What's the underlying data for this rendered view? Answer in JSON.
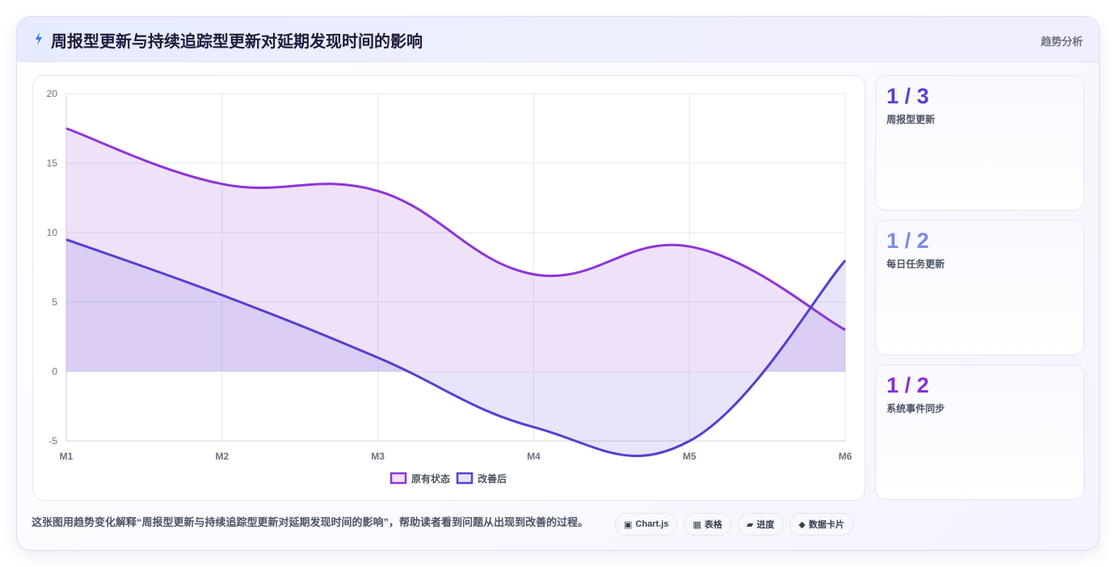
{
  "header": {
    "title": "周报型更新与持续追踪型更新对延期发现时间的影响",
    "tag": "趋势分析"
  },
  "stats": [
    {
      "value": "1 / 3",
      "label": "周报型更新",
      "color": "#5b3fd0"
    },
    {
      "value": "1 / 2",
      "label": "每日任务更新",
      "color": "#7c8ae6"
    },
    {
      "value": "1 / 2",
      "label": "系统事件同步",
      "color": "#8a2fd6"
    }
  ],
  "caption": "这张图用趋势变化解释“周报型更新与持续追踪型更新对延期发现时间的影响”，帮助读者看到问题从出现到改善的过程。",
  "chips": [
    {
      "icon": "▣",
      "icon_name": "chart-icon",
      "label": "Chart.js"
    },
    {
      "icon": "▦",
      "icon_name": "table-icon",
      "label": "表格"
    },
    {
      "icon": "▰",
      "icon_name": "progress-icon",
      "label": "进度"
    },
    {
      "icon": "◆",
      "icon_name": "card-icon",
      "label": "数据卡片"
    }
  ],
  "chart_data": {
    "type": "area",
    "categories": [
      "M1",
      "M2",
      "M3",
      "M4",
      "M5",
      "M6"
    ],
    "ylim": [
      -5,
      20
    ],
    "yticks": [
      -5,
      0,
      5,
      10,
      15,
      20
    ],
    "grid": true,
    "legend_position": "bottom",
    "series": [
      {
        "name": "原有状态",
        "values": [
          17.5,
          13.5,
          13,
          7,
          9,
          3
        ],
        "color": "#8e35d6",
        "fill": "rgba(180,120,225,0.22)"
      },
      {
        "name": "改善后",
        "values": [
          9.5,
          5.5,
          1,
          -4,
          -5,
          8
        ],
        "color": "#5540cf",
        "fill": "rgba(140,125,230,0.20)"
      }
    ]
  }
}
